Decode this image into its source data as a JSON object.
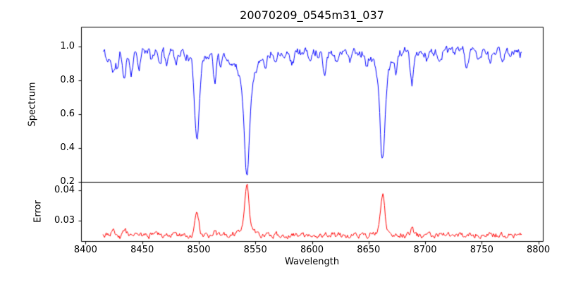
{
  "figure": {
    "background": "#ffffff",
    "axis_color": "#000000"
  },
  "chart_data": {
    "type": "line",
    "title": "20070209_0545m31_037",
    "xlabel": "Wavelength",
    "xlim": [
      8396,
      8804
    ],
    "x_data_range": [
      8415,
      8785
    ],
    "x_ticks": [
      {
        "v": 8400,
        "label": "8400"
      },
      {
        "v": 8450,
        "label": "8450"
      },
      {
        "v": 8500,
        "label": "8500"
      },
      {
        "v": 8550,
        "label": "8550"
      },
      {
        "v": 8600,
        "label": "8600"
      },
      {
        "v": 8650,
        "label": "8650"
      },
      {
        "v": 8700,
        "label": "8700"
      },
      {
        "v": 8750,
        "label": "8750"
      },
      {
        "v": 8800,
        "label": "8800"
      }
    ],
    "samples": 520,
    "noise_seed": 11,
    "grid": false,
    "legend": "none",
    "panels": [
      {
        "name": "spectrum",
        "ylabel": "Spectrum",
        "color": "#0000ff",
        "ylim": [
          0.2,
          1.115
        ],
        "y_ticks": [
          {
            "v": 0.2,
            "label": "0.2"
          },
          {
            "v": 0.4,
            "label": "0.4"
          },
          {
            "v": 0.6,
            "label": "0.6"
          },
          {
            "v": 0.8,
            "label": "0.8"
          },
          {
            "v": 1.0,
            "label": "1.0"
          }
        ],
        "base": 0.97,
        "noise_scale": 0.05,
        "jitter": 0.006,
        "feature_sign": -1,
        "features": [
          [
            8419,
            0.06,
            1.2
          ],
          [
            8424,
            0.13,
            1.5
          ],
          [
            8428,
            0.1,
            1.2
          ],
          [
            8434,
            0.16,
            1.5
          ],
          [
            8440,
            0.12,
            1.3
          ],
          [
            8447,
            0.08,
            1.2
          ],
          [
            8458,
            0.05,
            1.2
          ],
          [
            8465,
            0.07,
            1.2
          ],
          [
            8471,
            0.06,
            1.2
          ],
          [
            8480,
            0.05,
            1.2
          ],
          [
            8498.0,
            0.41,
            1.9
          ],
          [
            8498.0,
            0.09,
            5.5
          ],
          [
            8514,
            0.17,
            1.4
          ],
          [
            8519,
            0.09,
            1.2
          ],
          [
            8527,
            0.05,
            1.2
          ],
          [
            8542.1,
            0.55,
            2.3
          ],
          [
            8542.1,
            0.16,
            8.5
          ],
          [
            8559,
            0.05,
            1.2
          ],
          [
            8568,
            0.04,
            1.2
          ],
          [
            8582,
            0.07,
            1.3
          ],
          [
            8598,
            0.06,
            1.2
          ],
          [
            8611,
            0.12,
            1.4
          ],
          [
            8621,
            0.06,
            1.2
          ],
          [
            8633,
            0.04,
            1.2
          ],
          [
            8648,
            0.06,
            1.2
          ],
          [
            8662.1,
            0.52,
            2.1
          ],
          [
            8662.1,
            0.13,
            7.0
          ],
          [
            8674,
            0.08,
            1.2
          ],
          [
            8688,
            0.2,
            1.5
          ],
          [
            8702,
            0.05,
            1.2
          ],
          [
            8713,
            0.07,
            1.2
          ],
          [
            8736,
            0.09,
            1.3
          ],
          [
            8747,
            0.06,
            1.2
          ],
          [
            8757,
            0.07,
            1.2
          ],
          [
            8768,
            0.05,
            1.2
          ]
        ]
      },
      {
        "name": "error",
        "ylabel": "Error",
        "color": "#ff0000",
        "ylim": [
          0.0233,
          0.0428
        ],
        "y_ticks": [
          {
            "v": 0.03,
            "label": "0.03"
          },
          {
            "v": 0.04,
            "label": "0.04"
          }
        ],
        "base": 0.0253,
        "noise_scale": 0.0016,
        "jitter": 0.0002,
        "feature_sign": 1,
        "features": [
          [
            8424,
            0.0013,
            1.5
          ],
          [
            8428,
            0.0009,
            1.2
          ],
          [
            8434,
            0.0016,
            1.5
          ],
          [
            8440,
            0.0008,
            1.3
          ],
          [
            8465,
            0.0005,
            1.2
          ],
          [
            8498.0,
            0.0072,
            1.7
          ],
          [
            8514,
            0.0012,
            1.4
          ],
          [
            8542.1,
            0.0155,
            1.9
          ],
          [
            8542.1,
            0.0018,
            6.0
          ],
          [
            8611,
            0.0007,
            1.4
          ],
          [
            8662.1,
            0.0118,
            1.8
          ],
          [
            8662.1,
            0.0013,
            6.0
          ],
          [
            8688,
            0.0022,
            1.5
          ],
          [
            8713,
            0.0006,
            1.2
          ],
          [
            8736,
            0.0008,
            1.3
          ],
          [
            8757,
            0.0006,
            1.2
          ]
        ]
      }
    ],
    "notable_absorption_lines": [
      {
        "wavelength": 8498,
        "approx_min_flux": 0.46
      },
      {
        "wavelength": 8542,
        "approx_min_flux": 0.25
      },
      {
        "wavelength": 8662,
        "approx_min_flux": 0.31
      }
    ]
  }
}
